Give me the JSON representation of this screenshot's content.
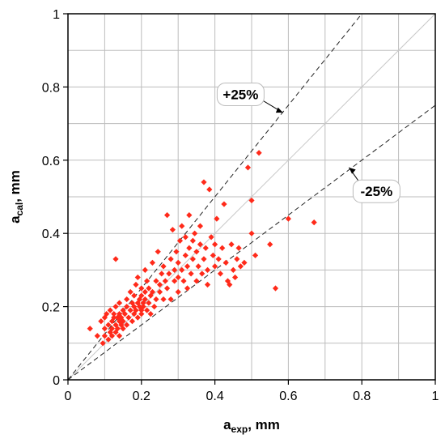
{
  "chart_data": {
    "type": "scatter",
    "xlabel": {
      "base": "a",
      "sub": "exp",
      "unit": ", mm"
    },
    "ylabel": {
      "base": "a",
      "sub": "cal",
      "unit": ", mm"
    },
    "xlim": [
      0,
      1
    ],
    "ylim": [
      0,
      1
    ],
    "grid": true,
    "xticks": [
      "0",
      "0.2",
      "0.4",
      "0.6",
      "0.8",
      "1"
    ],
    "yticks": [
      "0",
      "0.2",
      "0.4",
      "0.6",
      "0.8",
      "1"
    ],
    "marker_color": "#ff2a1a",
    "reference_lines": [
      {
        "slope": 1.0,
        "style": "solid",
        "color": "#c8c8c8"
      },
      {
        "slope": 1.25,
        "style": "dashed",
        "color": "#222222"
      },
      {
        "slope": 0.75,
        "style": "dashed",
        "color": "#222222"
      }
    ],
    "annotations": [
      {
        "text": "+25%",
        "box_at": [
          0.47,
          0.78
        ],
        "arrow_to": [
          0.585,
          0.73
        ]
      },
      {
        "text": "-25%",
        "box_at": [
          0.84,
          0.515
        ],
        "arrow_to": [
          0.765,
          0.58
        ]
      }
    ],
    "series": [
      {
        "points": [
          [
            0.06,
            0.14
          ],
          [
            0.08,
            0.12
          ],
          [
            0.09,
            0.16
          ],
          [
            0.095,
            0.1
          ],
          [
            0.1,
            0.14
          ],
          [
            0.1,
            0.17
          ],
          [
            0.1,
            0.12
          ],
          [
            0.105,
            0.18
          ],
          [
            0.11,
            0.15
          ],
          [
            0.11,
            0.11
          ],
          [
            0.115,
            0.19
          ],
          [
            0.115,
            0.13
          ],
          [
            0.12,
            0.16
          ],
          [
            0.12,
            0.14
          ],
          [
            0.12,
            0.12
          ],
          [
            0.125,
            0.18
          ],
          [
            0.125,
            0.17
          ],
          [
            0.13,
            0.15
          ],
          [
            0.13,
            0.2
          ],
          [
            0.13,
            0.13
          ],
          [
            0.13,
            0.33
          ],
          [
            0.135,
            0.17
          ],
          [
            0.135,
            0.14
          ],
          [
            0.14,
            0.18
          ],
          [
            0.14,
            0.16
          ],
          [
            0.14,
            0.12
          ],
          [
            0.14,
            0.21
          ],
          [
            0.145,
            0.15
          ],
          [
            0.145,
            0.17
          ],
          [
            0.15,
            0.19
          ],
          [
            0.15,
            0.14
          ],
          [
            0.15,
            0.16
          ],
          [
            0.155,
            0.18
          ],
          [
            0.16,
            0.2
          ],
          [
            0.16,
            0.15
          ],
          [
            0.16,
            0.22
          ],
          [
            0.165,
            0.17
          ],
          [
            0.17,
            0.19
          ],
          [
            0.17,
            0.24
          ],
          [
            0.175,
            0.21
          ],
          [
            0.175,
            0.16
          ],
          [
            0.18,
            0.2
          ],
          [
            0.18,
            0.18
          ],
          [
            0.18,
            0.23
          ],
          [
            0.185,
            0.19
          ],
          [
            0.185,
            0.26
          ],
          [
            0.19,
            0.21
          ],
          [
            0.19,
            0.17
          ],
          [
            0.19,
            0.28
          ],
          [
            0.195,
            0.22
          ],
          [
            0.195,
            0.2
          ],
          [
            0.2,
            0.19
          ],
          [
            0.2,
            0.23
          ],
          [
            0.2,
            0.25
          ],
          [
            0.2,
            0.18
          ],
          [
            0.205,
            0.21
          ],
          [
            0.205,
            0.2
          ],
          [
            0.21,
            0.24
          ],
          [
            0.21,
            0.22
          ],
          [
            0.21,
            0.3
          ],
          [
            0.215,
            0.19
          ],
          [
            0.215,
            0.27
          ],
          [
            0.22,
            0.21
          ],
          [
            0.22,
            0.25
          ],
          [
            0.225,
            0.23
          ],
          [
            0.225,
            0.18
          ],
          [
            0.23,
            0.32
          ],
          [
            0.23,
            0.24
          ],
          [
            0.235,
            0.2
          ],
          [
            0.24,
            0.27
          ],
          [
            0.24,
            0.22
          ],
          [
            0.245,
            0.35
          ],
          [
            0.25,
            0.26
          ],
          [
            0.25,
            0.24
          ],
          [
            0.255,
            0.29
          ],
          [
            0.26,
            0.22
          ],
          [
            0.26,
            0.31
          ],
          [
            0.265,
            0.27
          ],
          [
            0.27,
            0.45
          ],
          [
            0.27,
            0.25
          ],
          [
            0.275,
            0.29
          ],
          [
            0.28,
            0.33
          ],
          [
            0.28,
            0.22
          ],
          [
            0.285,
            0.41
          ],
          [
            0.29,
            0.27
          ],
          [
            0.29,
            0.3
          ],
          [
            0.295,
            0.35
          ],
          [
            0.3,
            0.28
          ],
          [
            0.3,
            0.32
          ],
          [
            0.3,
            0.24
          ],
          [
            0.305,
            0.38
          ],
          [
            0.31,
            0.3
          ],
          [
            0.31,
            0.42
          ],
          [
            0.315,
            0.27
          ],
          [
            0.32,
            0.34
          ],
          [
            0.32,
            0.39
          ],
          [
            0.325,
            0.31
          ],
          [
            0.325,
            0.25
          ],
          [
            0.33,
            0.36
          ],
          [
            0.33,
            0.45
          ],
          [
            0.335,
            0.29
          ],
          [
            0.34,
            0.33
          ],
          [
            0.34,
            0.38
          ],
          [
            0.345,
            0.4
          ],
          [
            0.35,
            0.27
          ],
          [
            0.35,
            0.35
          ],
          [
            0.355,
            0.31
          ],
          [
            0.36,
            0.37
          ],
          [
            0.36,
            0.42
          ],
          [
            0.365,
            0.29
          ],
          [
            0.37,
            0.54
          ],
          [
            0.37,
            0.33
          ],
          [
            0.375,
            0.36
          ],
          [
            0.38,
            0.3
          ],
          [
            0.38,
            0.26
          ],
          [
            0.385,
            0.52
          ],
          [
            0.39,
            0.39
          ],
          [
            0.395,
            0.34
          ],
          [
            0.4,
            0.31
          ],
          [
            0.4,
            0.37
          ],
          [
            0.405,
            0.44
          ],
          [
            0.41,
            0.33
          ],
          [
            0.415,
            0.29
          ],
          [
            0.42,
            0.36
          ],
          [
            0.425,
            0.48
          ],
          [
            0.43,
            0.32
          ],
          [
            0.435,
            0.27
          ],
          [
            0.44,
            0.26
          ],
          [
            0.445,
            0.37
          ],
          [
            0.45,
            0.3
          ],
          [
            0.455,
            0.28
          ],
          [
            0.46,
            0.33
          ],
          [
            0.465,
            0.36
          ],
          [
            0.47,
            0.31
          ],
          [
            0.48,
            0.32
          ],
          [
            0.49,
            0.58
          ],
          [
            0.5,
            0.49
          ],
          [
            0.5,
            0.4
          ],
          [
            0.51,
            0.34
          ],
          [
            0.52,
            0.62
          ],
          [
            0.55,
            0.37
          ],
          [
            0.565,
            0.25
          ],
          [
            0.6,
            0.44
          ],
          [
            0.67,
            0.43
          ]
        ]
      }
    ]
  }
}
